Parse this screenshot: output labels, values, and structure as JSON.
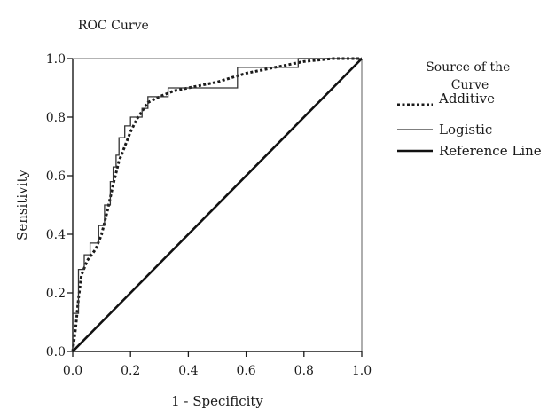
{
  "chart_data": {
    "type": "line",
    "title": "ROC Curve",
    "xlabel": "1 - Specificity",
    "ylabel": "Sensitivity",
    "xlim": [
      0,
      1
    ],
    "ylim": [
      0,
      1
    ],
    "xticks": [
      "0.0",
      "0.2",
      "0.4",
      "0.6",
      "0.8",
      "1.0"
    ],
    "yticks": [
      "0.0",
      "0.2",
      "0.4",
      "0.6",
      "0.8",
      "1.0"
    ],
    "grid": false,
    "legend": {
      "title": "Source of the Curve",
      "placement": "right",
      "entries": [
        "Additive",
        "Logistic",
        "Reference Line"
      ]
    },
    "series": [
      {
        "name": "Additive",
        "style": "dotted",
        "x": [
          0.0,
          0.01,
          0.02,
          0.03,
          0.05,
          0.08,
          0.1,
          0.12,
          0.14,
          0.16,
          0.18,
          0.2,
          0.22,
          0.24,
          0.26,
          0.3,
          0.35,
          0.4,
          0.5,
          0.6,
          0.7,
          0.8,
          0.9,
          1.0
        ],
        "y": [
          0.0,
          0.08,
          0.18,
          0.26,
          0.31,
          0.35,
          0.4,
          0.48,
          0.57,
          0.65,
          0.7,
          0.75,
          0.79,
          0.82,
          0.85,
          0.87,
          0.89,
          0.9,
          0.92,
          0.95,
          0.97,
          0.99,
          1.0,
          1.0
        ]
      },
      {
        "name": "Logistic",
        "style": "thin",
        "x": [
          0.0,
          0.0,
          0.02,
          0.02,
          0.04,
          0.04,
          0.06,
          0.06,
          0.09,
          0.09,
          0.11,
          0.11,
          0.13,
          0.13,
          0.14,
          0.14,
          0.15,
          0.15,
          0.16,
          0.16,
          0.18,
          0.18,
          0.2,
          0.2,
          0.22,
          0.22,
          0.24,
          0.24,
          0.26,
          0.26,
          0.28,
          0.28,
          0.33,
          0.33,
          0.37,
          0.37,
          0.57,
          0.57,
          0.75,
          0.75,
          0.78,
          0.78,
          1.0
        ],
        "y": [
          0.0,
          0.13,
          0.13,
          0.28,
          0.28,
          0.33,
          0.33,
          0.37,
          0.37,
          0.43,
          0.43,
          0.5,
          0.5,
          0.58,
          0.58,
          0.63,
          0.63,
          0.67,
          0.67,
          0.73,
          0.73,
          0.77,
          0.77,
          0.8,
          0.8,
          0.8,
          0.8,
          0.83,
          0.83,
          0.87,
          0.87,
          0.87,
          0.87,
          0.9,
          0.9,
          0.9,
          0.9,
          0.97,
          0.97,
          0.97,
          0.97,
          1.0,
          1.0
        ]
      },
      {
        "name": "Reference Line",
        "style": "thick",
        "x": [
          0.0,
          1.0
        ],
        "y": [
          0.0,
          1.0
        ]
      }
    ]
  }
}
